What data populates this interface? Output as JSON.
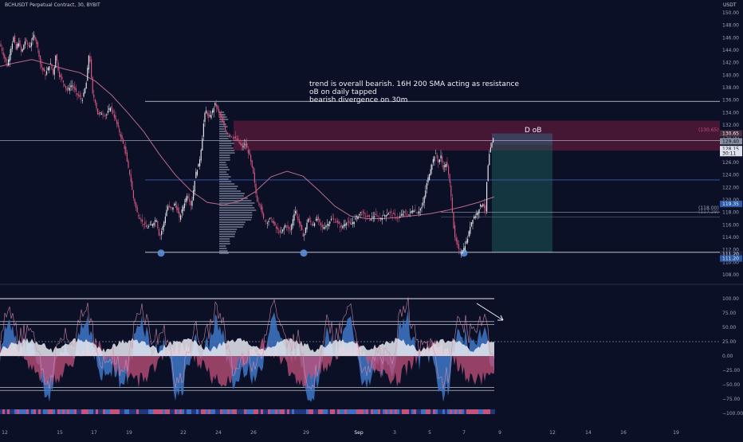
{
  "header": {
    "symbol": "BCHUSDT Perpetual Contract, 30, BYBIT",
    "currency": "USDT"
  },
  "annotations": {
    "note": [
      "trend is overall bearish. 16H 200 SMA acting as resistance",
      "oB on daily tapped",
      "bearish divergence on 30m"
    ],
    "ob_label": "D oB",
    "tp_label_1": "(118.00)",
    "tp_label_2": "(117.29)",
    "entry_label": "(130.65)"
  },
  "colors": {
    "background": "#0b1026",
    "candle_up": "#e2e4ea",
    "candle_down": "#d4577f",
    "sma": "#b86b8c",
    "ob_zone": "#8d1e4a",
    "target_zone": "#1c5c5a",
    "stop_zone": "#3b4761",
    "osc_blue": "#3f78c8",
    "osc_pink": "#c4527b",
    "osc_white": "#e8eaf0",
    "level_line": "#3b5bb0",
    "grid_text": "#9aa1b8"
  },
  "chart_data": [
    {
      "type": "candlestick",
      "title": "BCHUSDT Perpetual Contract, 30, BYBIT",
      "ylabel": "USDT",
      "ylim": [
        107,
        151
      ],
      "y_ticks": [
        150,
        148,
        146,
        144,
        142,
        140,
        138,
        136,
        134,
        132,
        130,
        128,
        126,
        124,
        122,
        120,
        118,
        116,
        114,
        112,
        110,
        108
      ],
      "x_ticks": [
        "12",
        "15",
        "17",
        "19",
        "22",
        "24",
        "26",
        "29",
        "Sep",
        "3",
        "5",
        "7",
        "9",
        "12",
        "14",
        "16",
        "19"
      ],
      "series": [
        {
          "name": "price",
          "x": [
            0,
            5,
            9,
            13,
            17,
            20,
            23,
            27,
            31,
            37,
            43,
            48,
            51,
            57,
            63,
            67,
            70,
            74,
            79,
            84,
            90,
            96,
            103,
            108,
            112,
            116,
            119,
            123,
            127,
            133,
            139,
            147,
            152,
            157,
            160,
            163,
            167,
            172,
            178,
            184,
            190,
            196,
            200,
            205,
            210,
            215,
            220,
            225,
            230,
            235,
            240,
            245,
            250,
            253,
            256,
            258,
            262,
            266,
            270,
            274,
            278,
            283,
            288,
            293,
            298,
            303,
            308,
            313,
            318,
            322,
            326,
            330,
            335,
            340,
            346,
            352,
            358,
            364,
            370,
            376,
            381,
            386,
            392,
            398,
            404,
            410,
            416,
            422,
            428,
            434,
            440,
            446,
            452,
            458,
            464,
            470,
            476,
            482,
            488,
            494,
            500,
            506,
            512,
            518,
            524,
            530,
            536,
            541,
            546,
            550,
            553,
            556,
            560,
            565,
            570,
            573,
            575,
            578,
            581,
            584,
            587,
            590,
            593,
            596,
            599,
            602,
            606,
            609,
            611,
            614,
            617,
            620
          ],
          "values": [
            145,
            143,
            141.5,
            144,
            146,
            144,
            145.5,
            143.5,
            145.5,
            144.5,
            146.5,
            144,
            141.5,
            140,
            142,
            140,
            143.5,
            140,
            139,
            137.5,
            138.5,
            137,
            136,
            138.5,
            144,
            137,
            136,
            133.5,
            134,
            133.5,
            135,
            132,
            130,
            128,
            125.5,
            124,
            120.5,
            118,
            116.5,
            115.5,
            116,
            117,
            114,
            116,
            119,
            118.5,
            119.5,
            117,
            119,
            121,
            119,
            124,
            126,
            129,
            133,
            134.5,
            133,
            134,
            135.5,
            134,
            133,
            131,
            130.5,
            130,
            129.5,
            128.5,
            129,
            127,
            124,
            120,
            119.5,
            117,
            116.5,
            117,
            115.5,
            114.5,
            116,
            115,
            118.5,
            116,
            114,
            117,
            116,
            117,
            115.5,
            116,
            117,
            116.5,
            115.5,
            116.5,
            116,
            117,
            118,
            117.5,
            117,
            117.5,
            117,
            117.5,
            118,
            117.5,
            117,
            118,
            117.5,
            118.5,
            118,
            119,
            123,
            125.5,
            127.5,
            126,
            127,
            125,
            126,
            122,
            114,
            113,
            112,
            111.6,
            112,
            113,
            114,
            116,
            117,
            117.5,
            118,
            119,
            119.5,
            118,
            124,
            127.5,
            129,
            130.5
          ]
        },
        {
          "name": "16H 200 SMA",
          "x": [
            0,
            20,
            40,
            60,
            80,
            100,
            120,
            140,
            160,
            180,
            200,
            220,
            240,
            260,
            280,
            300,
            320,
            340,
            360,
            380,
            400,
            420,
            440,
            460,
            480,
            500,
            520,
            540,
            560,
            580,
            600,
            620
          ],
          "values": [
            141.4,
            142,
            142.5,
            141.8,
            141,
            140.4,
            139,
            136.8,
            134,
            131,
            127.3,
            124,
            121.4,
            119.6,
            119.2,
            119.8,
            121.3,
            123.7,
            124.6,
            123.8,
            121.5,
            119,
            117.4,
            117,
            117,
            117.2,
            117.5,
            117.8,
            118.3,
            118.9,
            119.6,
            120.5
          ]
        }
      ],
      "levels": [
        135.8,
        129.5,
        123.2,
        111.6
      ],
      "zones": {
        "order_block": [
          127.9,
          132.7
        ],
        "stop": [
          128.8,
          130.65
        ],
        "target": [
          111.6,
          128.8
        ]
      },
      "price_labels": [
        {
          "label": "130.65",
          "value": 130.65
        },
        {
          "label": "129.40",
          "value": 129.4
        },
        {
          "label": "128.15",
          "value": 128.15
        },
        {
          "label": "30:11",
          "value": 127.5
        },
        {
          "label": "119.35",
          "value": 119.35
        },
        {
          "label": "111.20",
          "value": 111.3
        },
        {
          "label": "111.20",
          "value": 110.6
        }
      ]
    },
    {
      "type": "area",
      "title": "",
      "ylim": [
        -104,
        104
      ],
      "y_ticks": [
        "100.00",
        "75.00",
        "50.00",
        "25.00",
        "0.00",
        "−25.00",
        "−50.00",
        "−75.00",
        "−100.00"
      ],
      "levels": [
        100,
        60,
        55,
        25,
        -55,
        -60
      ],
      "divergence_arrow": true
    }
  ]
}
